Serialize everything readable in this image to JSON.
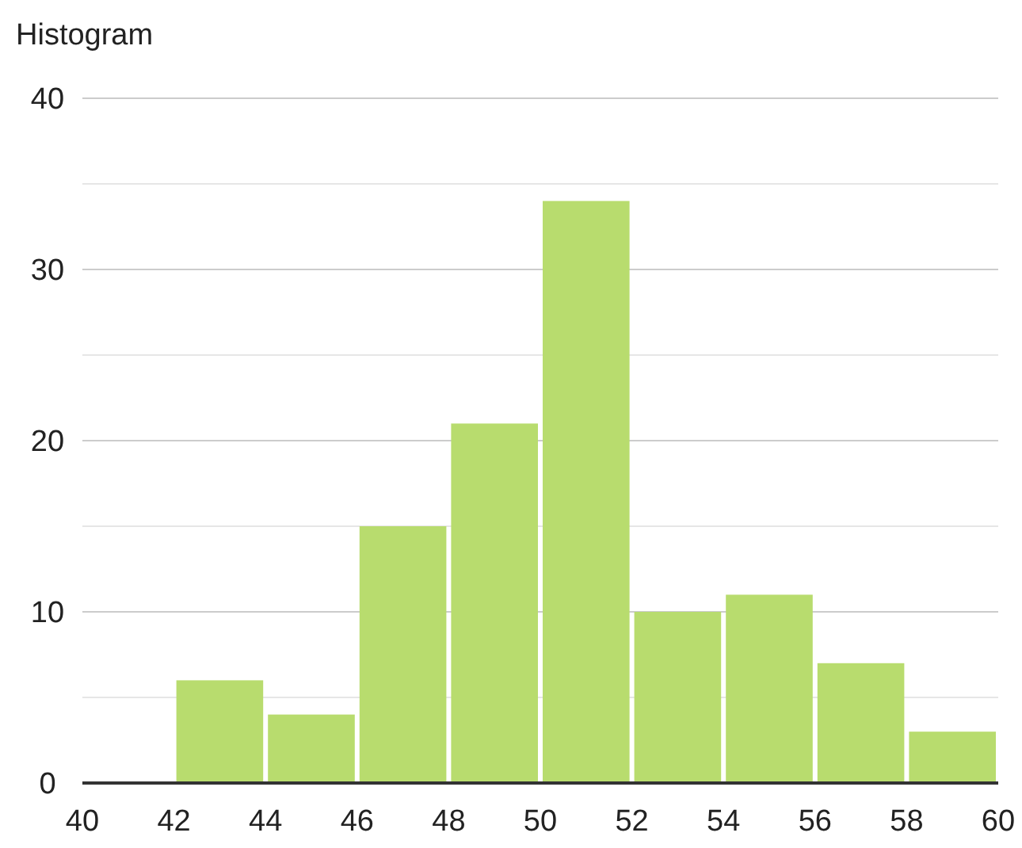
{
  "chart_data": {
    "type": "histogram",
    "title": "Histogram",
    "bins": [
      40,
      42,
      44,
      46,
      48,
      50,
      52,
      54,
      56,
      58,
      60
    ],
    "values": [
      0,
      6,
      4,
      15,
      21,
      34,
      10,
      11,
      7,
      3
    ],
    "color": "#b8dc6e",
    "xlim": [
      40,
      60
    ],
    "xticks": [
      40,
      42,
      44,
      46,
      48,
      50,
      52,
      54,
      56,
      58,
      60
    ],
    "ylim": [
      0,
      40
    ],
    "yticks": [
      0,
      {
        "value": 5,
        "label": null
      },
      10,
      {
        "value": 15,
        "label": null
      },
      20,
      {
        "value": 25,
        "label": null
      },
      30,
      {
        "value": 35,
        "label": null
      },
      40
    ],
    "grid": "y"
  }
}
